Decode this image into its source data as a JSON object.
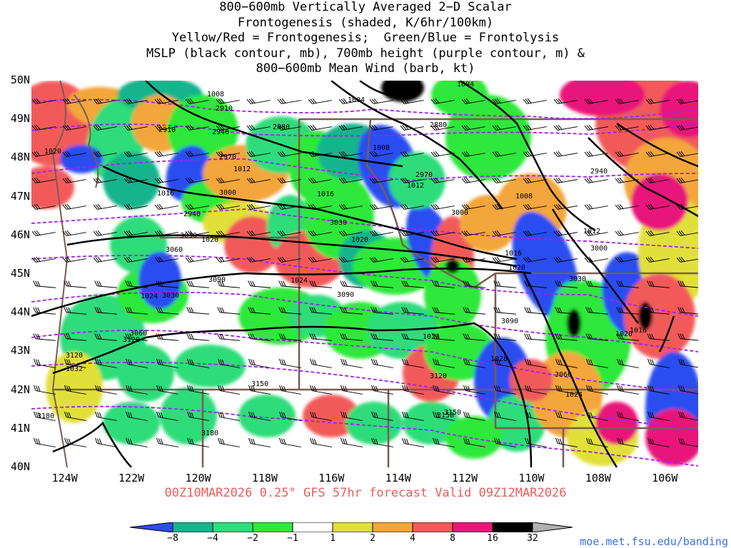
{
  "title": {
    "lines": [
      "800−600mb Vertically Averaged 2−D Scalar",
      "Frontogenesis (shaded, K/6hr/100km)",
      "Yellow/Red = Frontogenesis;  Green/Blue = Frontolysis",
      "MSLP (black contour, mb), 700mb height (purple contour, m) &",
      "800−600mb Mean Wind (barb, kt)"
    ]
  },
  "map": {
    "lat_labels": [
      "50N",
      "49N",
      "48N",
      "47N",
      "46N",
      "45N",
      "44N",
      "43N",
      "42N",
      "41N",
      "40N"
    ],
    "lat_values": [
      50,
      49,
      48,
      47,
      46,
      45,
      44,
      43,
      42,
      41,
      40
    ],
    "lon_labels": [
      "124W",
      "122W",
      "120W",
      "118W",
      "116W",
      "114W",
      "112W",
      "110W",
      "108W",
      "106W"
    ],
    "lon_values": [
      -124,
      -122,
      -120,
      -118,
      -116,
      -114,
      -112,
      -110,
      -108,
      -106
    ],
    "lat_range": [
      40,
      50
    ],
    "lon_range": [
      -125,
      -105
    ],
    "mslp_labels": [
      "1008",
      "1004",
      "1004",
      "1008",
      "1012",
      "1012",
      "1016",
      "1016",
      "1020",
      "1020",
      "1024",
      "1024",
      "1016",
      "1020",
      "1024",
      "1028",
      "1024",
      "1032",
      "1020",
      "1016",
      "1012",
      "1008",
      "1020"
    ],
    "height_labels": [
      "2910",
      "2880",
      "2910",
      "2940",
      "2970",
      "2940",
      "2970",
      "3000",
      "3000",
      "3030",
      "3030",
      "3060",
      "3030",
      "3060",
      "3090",
      "3090",
      "3120",
      "3120",
      "3150",
      "3150",
      "3180",
      "3180",
      "3090",
      "3120",
      "3060",
      "3150",
      "3000",
      "3030",
      "2880",
      "2940"
    ],
    "colors": {
      "mslp": "#000000",
      "height": "#a020f0",
      "borders": "#7a5c50",
      "barbs": "#000000"
    }
  },
  "forecast_text": "00Z10MAR2026 0.25° GFS 57hr forecast Valid 09Z12MAR2026",
  "colorbar": {
    "labels": [
      "−8",
      "−4",
      "−2",
      "−1",
      "1",
      "2",
      "4",
      "8",
      "16",
      "32"
    ],
    "colors": [
      "#2a4ef0",
      "#17b48c",
      "#2ddc7a",
      "#2ee83a",
      "#ffffff",
      "#e1e03a",
      "#f3a63a",
      "#f25a5a",
      "#e8187a",
      "#000000",
      "#b0b0b0"
    ]
  },
  "credit": "moe.met.fsu.edu/banding"
}
